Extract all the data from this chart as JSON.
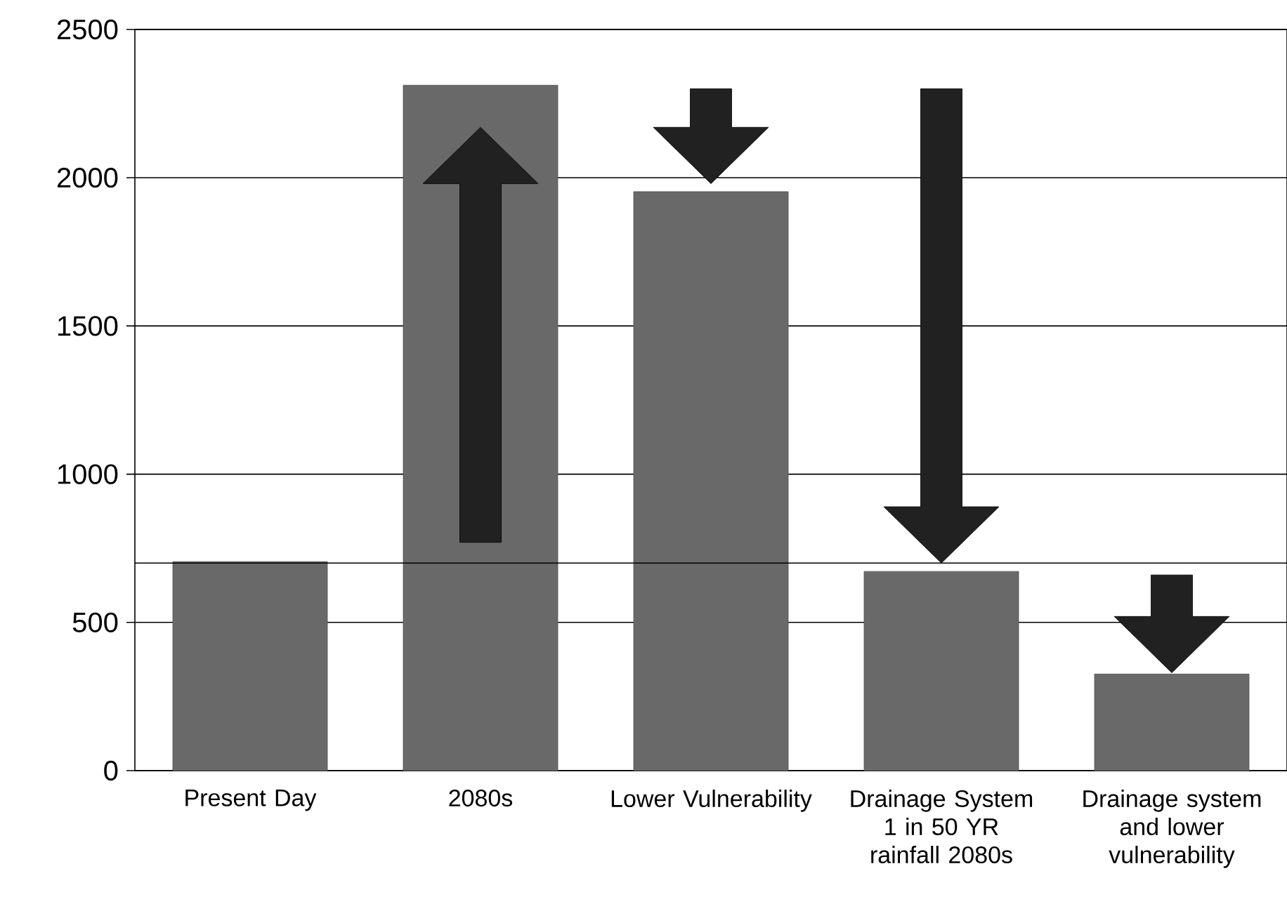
{
  "chart_data": {
    "type": "bar",
    "categories": [
      "Present Day",
      "2080s",
      "Lower Vulnerability",
      "Drainage System 1 in 50 YR rainfall 2080s",
      "Drainage system and lower vulnerability"
    ],
    "values": [
      705,
      2312,
      1953,
      672,
      326
    ],
    "color": "#696969",
    "ylim": [
      0,
      2500
    ],
    "yticks": [
      0,
      500,
      1000,
      1500,
      2000,
      2500
    ],
    "grid": "y",
    "ref_lines": [
      {
        "axis": "y",
        "value": 700,
        "color": "#000000"
      }
    ]
  }
}
